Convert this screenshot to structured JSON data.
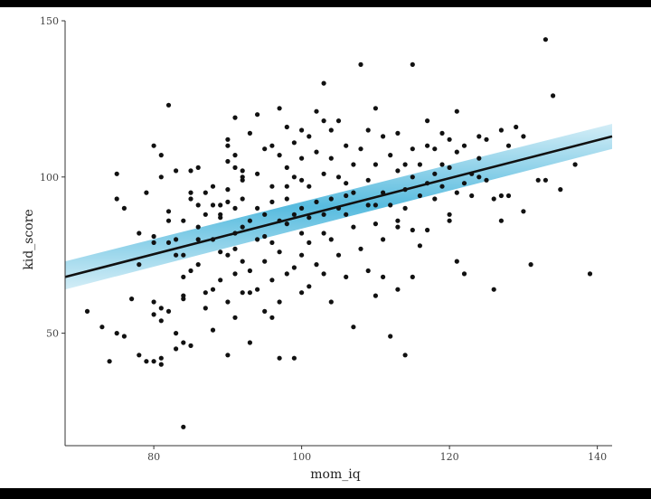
{
  "chart_data": {
    "type": "scatter",
    "title": "",
    "xlabel": "mom_iq",
    "ylabel": "kid_score",
    "xlim": [
      68,
      142
    ],
    "ylim": [
      14,
      150
    ],
    "xticks": [
      80,
      100,
      120,
      140
    ],
    "yticks": [
      50,
      100,
      150
    ],
    "grid": false,
    "colors": {
      "points": "#111111",
      "fit_line": "#111111",
      "band": "#4fb8dd"
    },
    "fit_line": {
      "x": [
        68,
        142
      ],
      "y": [
        68,
        113
      ]
    },
    "band": {
      "x": [
        68,
        142
      ],
      "lower": [
        64,
        109
      ],
      "upper": [
        73,
        117
      ]
    },
    "points": [
      [
        71,
        57
      ],
      [
        73,
        52
      ],
      [
        75,
        50
      ],
      [
        74,
        41
      ],
      [
        75,
        101
      ],
      [
        75,
        93
      ],
      [
        76,
        49
      ],
      [
        77,
        61
      ],
      [
        78,
        43
      ],
      [
        78,
        82
      ],
      [
        79,
        41
      ],
      [
        79,
        95
      ],
      [
        80,
        81
      ],
      [
        80,
        79
      ],
      [
        80,
        56
      ],
      [
        80,
        60
      ],
      [
        80,
        41
      ],
      [
        80,
        110
      ],
      [
        81,
        107
      ],
      [
        81,
        100
      ],
      [
        81,
        54
      ],
      [
        81,
        58
      ],
      [
        81,
        40
      ],
      [
        81,
        42
      ],
      [
        82,
        57
      ],
      [
        82,
        123
      ],
      [
        82,
        79
      ],
      [
        82,
        89
      ],
      [
        82,
        86
      ],
      [
        83,
        80
      ],
      [
        83,
        102
      ],
      [
        83,
        50
      ],
      [
        83,
        45
      ],
      [
        84,
        68
      ],
      [
        84,
        62
      ],
      [
        84,
        61
      ],
      [
        84,
        47
      ],
      [
        84,
        20
      ],
      [
        84,
        75
      ],
      [
        84,
        86
      ],
      [
        85,
        93
      ],
      [
        85,
        95
      ],
      [
        85,
        102
      ],
      [
        85,
        46
      ],
      [
        85,
        70
      ],
      [
        86,
        103
      ],
      [
        86,
        91
      ],
      [
        86,
        84
      ],
      [
        86,
        72
      ],
      [
        87,
        63
      ],
      [
        87,
        58
      ],
      [
        87,
        88
      ],
      [
        87,
        95
      ],
      [
        88,
        91
      ],
      [
        88,
        97
      ],
      [
        88,
        80
      ],
      [
        88,
        64
      ],
      [
        88,
        51
      ],
      [
        89,
        76
      ],
      [
        89,
        88
      ],
      [
        89,
        87
      ],
      [
        89,
        91
      ],
      [
        90,
        112
      ],
      [
        90,
        110
      ],
      [
        90,
        105
      ],
      [
        90,
        96
      ],
      [
        90,
        92
      ],
      [
        90,
        75
      ],
      [
        90,
        60
      ],
      [
        90,
        43
      ],
      [
        91,
        119
      ],
      [
        91,
        107
      ],
      [
        91,
        103
      ],
      [
        91,
        90
      ],
      [
        91,
        82
      ],
      [
        91,
        77
      ],
      [
        91,
        69
      ],
      [
        91,
        55
      ],
      [
        92,
        102
      ],
      [
        92,
        99
      ],
      [
        92,
        93
      ],
      [
        92,
        84
      ],
      [
        92,
        73
      ],
      [
        92,
        63
      ],
      [
        93,
        114
      ],
      [
        93,
        86
      ],
      [
        93,
        70
      ],
      [
        93,
        63
      ],
      [
        93,
        47
      ],
      [
        94,
        120
      ],
      [
        94,
        101
      ],
      [
        94,
        90
      ],
      [
        94,
        80
      ],
      [
        94,
        64
      ],
      [
        95,
        88
      ],
      [
        95,
        81
      ],
      [
        95,
        73
      ],
      [
        95,
        57
      ],
      [
        96,
        110
      ],
      [
        96,
        97
      ],
      [
        96,
        92
      ],
      [
        96,
        79
      ],
      [
        96,
        67
      ],
      [
        96,
        55
      ],
      [
        97,
        122
      ],
      [
        97,
        107
      ],
      [
        97,
        86
      ],
      [
        97,
        76
      ],
      [
        97,
        60
      ],
      [
        98,
        116
      ],
      [
        98,
        103
      ],
      [
        98,
        93
      ],
      [
        98,
        85
      ],
      [
        98,
        69
      ],
      [
        99,
        111
      ],
      [
        99,
        100
      ],
      [
        99,
        88
      ],
      [
        99,
        71
      ],
      [
        99,
        42
      ],
      [
        100,
        115
      ],
      [
        100,
        106
      ],
      [
        100,
        99
      ],
      [
        100,
        90
      ],
      [
        100,
        82
      ],
      [
        100,
        75
      ],
      [
        101,
        113
      ],
      [
        101,
        97
      ],
      [
        101,
        87
      ],
      [
        101,
        79
      ],
      [
        101,
        65
      ],
      [
        102,
        121
      ],
      [
        102,
        108
      ],
      [
        102,
        92
      ],
      [
        102,
        72
      ],
      [
        103,
        130
      ],
      [
        103,
        118
      ],
      [
        103,
        101
      ],
      [
        103,
        88
      ],
      [
        103,
        69
      ],
      [
        104,
        115
      ],
      [
        104,
        106
      ],
      [
        104,
        93
      ],
      [
        104,
        80
      ],
      [
        104,
        60
      ],
      [
        105,
        118
      ],
      [
        105,
        100
      ],
      [
        105,
        90
      ],
      [
        105,
        75
      ],
      [
        106,
        110
      ],
      [
        106,
        98
      ],
      [
        106,
        88
      ],
      [
        106,
        68
      ],
      [
        107,
        104
      ],
      [
        107,
        95
      ],
      [
        107,
        84
      ],
      [
        107,
        52
      ],
      [
        108,
        136
      ],
      [
        108,
        109
      ],
      [
        108,
        77
      ],
      [
        109,
        115
      ],
      [
        109,
        99
      ],
      [
        109,
        91
      ],
      [
        109,
        70
      ],
      [
        110,
        122
      ],
      [
        110,
        104
      ],
      [
        110,
        85
      ],
      [
        110,
        62
      ],
      [
        111,
        113
      ],
      [
        111,
        95
      ],
      [
        111,
        80
      ],
      [
        111,
        68
      ],
      [
        112,
        107
      ],
      [
        112,
        91
      ],
      [
        112,
        49
      ],
      [
        113,
        114
      ],
      [
        113,
        102
      ],
      [
        113,
        86
      ],
      [
        113,
        64
      ],
      [
        114,
        104
      ],
      [
        114,
        96
      ],
      [
        114,
        90
      ],
      [
        115,
        136
      ],
      [
        115,
        109
      ],
      [
        115,
        100
      ],
      [
        115,
        83
      ],
      [
        115,
        68
      ],
      [
        116,
        104
      ],
      [
        116,
        94
      ],
      [
        116,
        78
      ],
      [
        117,
        118
      ],
      [
        117,
        110
      ],
      [
        117,
        98
      ],
      [
        118,
        109
      ],
      [
        118,
        101
      ],
      [
        118,
        93
      ],
      [
        119,
        114
      ],
      [
        119,
        104
      ],
      [
        119,
        97
      ],
      [
        120,
        112
      ],
      [
        120,
        103
      ],
      [
        120,
        88
      ],
      [
        121,
        121
      ],
      [
        121,
        108
      ],
      [
        121,
        95
      ],
      [
        121,
        73
      ],
      [
        122,
        110
      ],
      [
        122,
        98
      ],
      [
        122,
        69
      ],
      [
        123,
        101
      ],
      [
        123,
        94
      ],
      [
        124,
        113
      ],
      [
        124,
        106
      ],
      [
        125,
        112
      ],
      [
        125,
        99
      ],
      [
        126,
        93
      ],
      [
        126,
        64
      ],
      [
        127,
        115
      ],
      [
        127,
        86
      ],
      [
        128,
        110
      ],
      [
        128,
        94
      ],
      [
        129,
        116
      ],
      [
        130,
        113
      ],
      [
        130,
        89
      ],
      [
        131,
        72
      ],
      [
        132,
        99
      ],
      [
        133,
        144
      ],
      [
        133,
        99
      ],
      [
        134,
        126
      ],
      [
        135,
        96
      ],
      [
        137,
        104
      ],
      [
        139,
        69
      ],
      [
        76,
        90
      ],
      [
        78,
        72
      ],
      [
        83,
        75
      ],
      [
        86,
        80
      ],
      [
        89,
        67
      ],
      [
        92,
        100
      ],
      [
        95,
        109
      ],
      [
        98,
        97
      ],
      [
        100,
        63
      ],
      [
        103,
        82
      ],
      [
        106,
        94
      ],
      [
        110,
        91
      ],
      [
        113,
        84
      ],
      [
        117,
        83
      ],
      [
        120,
        86
      ],
      [
        124,
        100
      ],
      [
        127,
        94
      ],
      [
        114,
        43
      ],
      [
        97,
        42
      ]
    ]
  }
}
